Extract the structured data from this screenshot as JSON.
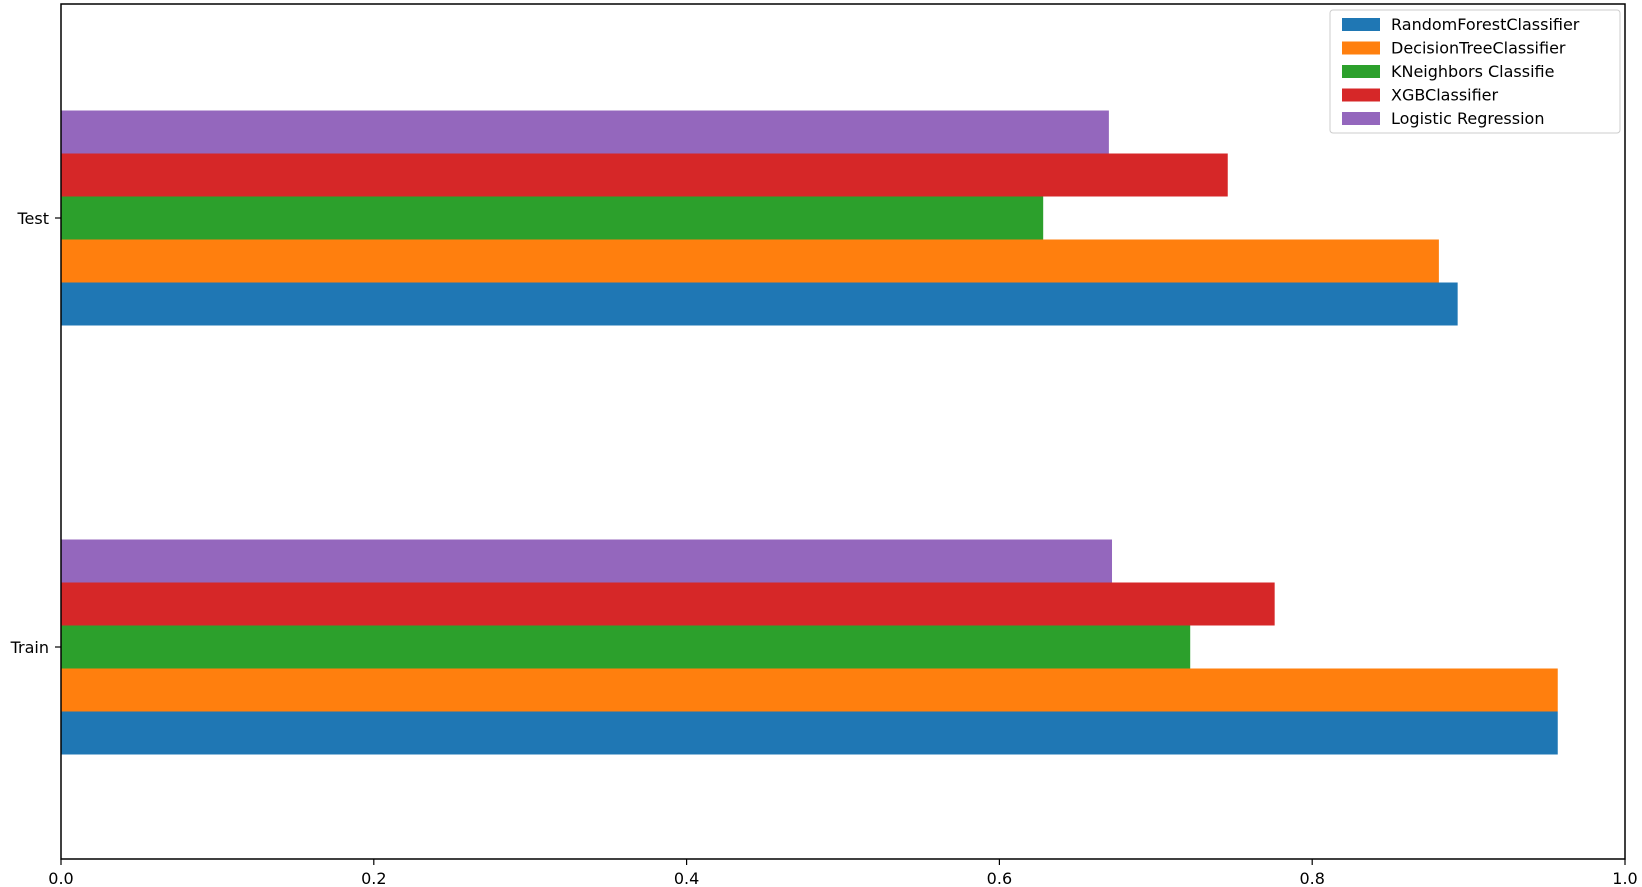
{
  "chart_data": {
    "type": "bar",
    "orientation": "horizontal",
    "categories": [
      "Train",
      "Test"
    ],
    "series": [
      {
        "name": " RandomForestClassifier",
        "color": "#1f77b4",
        "values": [
          0.957,
          0.893
        ]
      },
      {
        "name": "DecisionTreeClassifier",
        "color": "#ff7f0e",
        "values": [
          0.957,
          0.881
        ]
      },
      {
        "name": "KNeighbors Classifie",
        "color": "#2ca02c",
        "values": [
          0.722,
          0.628
        ]
      },
      {
        "name": "XGBClassifier",
        "color": "#d62728",
        "values": [
          0.776,
          0.746
        ]
      },
      {
        "name": "Logistic Regression",
        "color": "#9467bd",
        "values": [
          0.672,
          0.67
        ]
      }
    ],
    "xlim": [
      0.0,
      1.0
    ],
    "xticks": [
      "0.0",
      "0.2",
      "0.4",
      "0.6",
      "0.8",
      "1.0"
    ],
    "title": "",
    "xlabel": "",
    "ylabel": "",
    "grid": false,
    "legend_position": "top-right"
  }
}
